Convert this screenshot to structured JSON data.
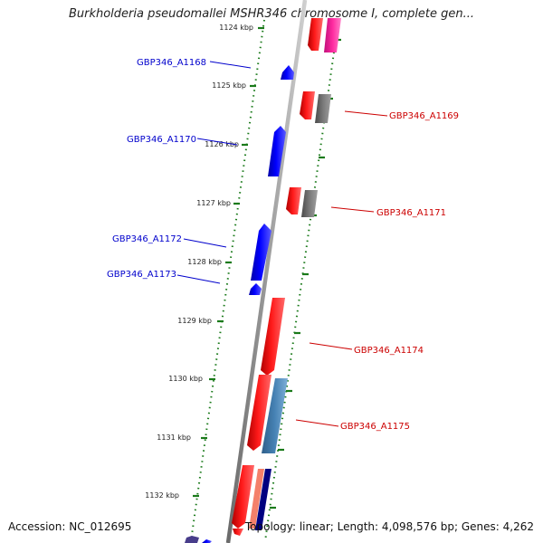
{
  "title": "Burkholderia pseudomallei MSHR346 chromosome I, complete gen...",
  "footer": {
    "accession": "Accession: NC_012695",
    "meta": "Topology: linear; Length: 4,098,576 bp; Genes: 4,262"
  },
  "colors": {
    "backbone": "#8a8a8a",
    "forward_strand_label": "#0000cc",
    "reverse_strand_label": "#cc0000",
    "tick": "#1a7a1a",
    "gene_blue": "#0000ff",
    "gene_red": "#ff0000",
    "gene_gray": "#777777",
    "gene_magenta": "#ff2aa0",
    "gene_steelblue": "#4682b4",
    "gene_salmon": "#f4806a",
    "gene_navy": "#000080",
    "gene_slate": "#483d8b"
  },
  "ticks": [
    {
      "label": "1124 kbp",
      "kbp": 1124
    },
    {
      "label": "1125 kbp",
      "kbp": 1125
    },
    {
      "label": "1126 kbp",
      "kbp": 1126
    },
    {
      "label": "1127 kbp",
      "kbp": 1127
    },
    {
      "label": "1128 kbp",
      "kbp": 1128
    },
    {
      "label": "1129 kbp",
      "kbp": 1129
    },
    {
      "label": "1130 kbp",
      "kbp": 1130
    },
    {
      "label": "1131 kbp",
      "kbp": 1131
    },
    {
      "label": "1132 kbp",
      "kbp": 1132
    }
  ],
  "gene_labels": [
    {
      "name": "GBP346_A1168",
      "strand": "forward"
    },
    {
      "name": "GBP346_A1169",
      "strand": "reverse"
    },
    {
      "name": "GBP346_A1170",
      "strand": "forward"
    },
    {
      "name": "GBP346_A1171",
      "strand": "reverse"
    },
    {
      "name": "GBP346_A1172",
      "strand": "forward"
    },
    {
      "name": "GBP346_A1173",
      "strand": "forward"
    },
    {
      "name": "GBP346_A1174",
      "strand": "reverse"
    },
    {
      "name": "GBP346_A1175",
      "strand": "reverse"
    }
  ]
}
